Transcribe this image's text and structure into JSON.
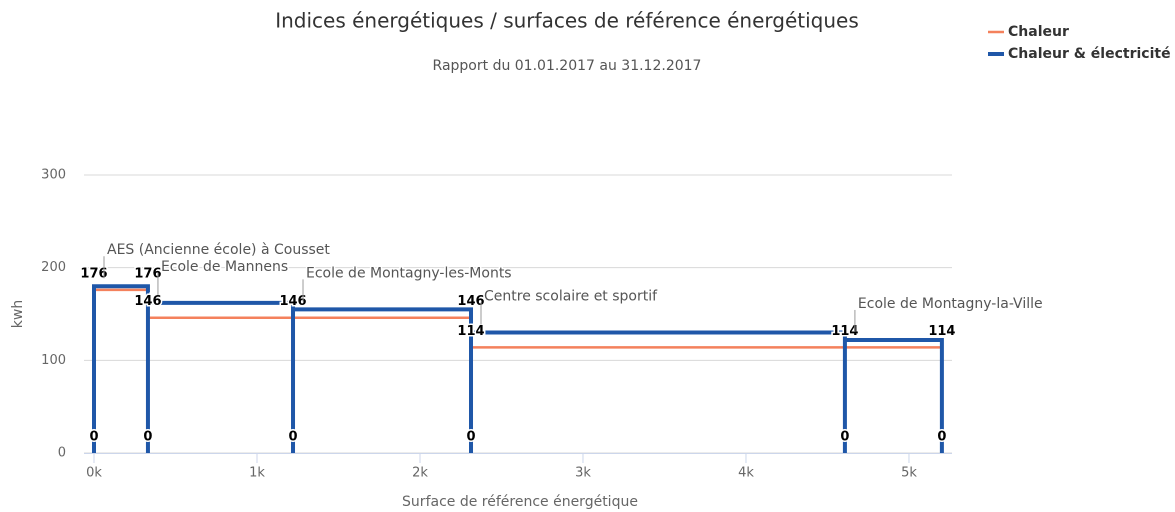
{
  "chart_data": {
    "type": "line",
    "title": "Indices énergétiques / surfaces de référence énergétiques",
    "subtitle": "Rapport du 01.01.2017 au 31.12.2017",
    "x_label": "Surface de référence énergétique",
    "y_label": "kwh",
    "x": [
      0,
      0,
      331,
      331,
      331,
      1221,
      1221,
      1221,
      2313,
      2313,
      2313,
      4607,
      4607,
      4607,
      5202,
      5202
    ],
    "series": [
      {
        "name": "Chaleur",
        "color": "#f4815c",
        "values": [
          0,
          176,
          176,
          0,
          146,
          146,
          0,
          146,
          146,
          0,
          114,
          114,
          0,
          114,
          114,
          0
        ],
        "data_labels": true
      },
      {
        "name": "Chaleur & électricité",
        "color": "#1f57a8",
        "values": [
          0,
          180,
          180,
          0,
          162,
          162,
          0,
          155,
          155,
          0,
          130,
          130,
          0,
          122,
          122,
          0
        ],
        "data_labels": false
      }
    ],
    "annotations": [
      {
        "text": "AES (Ancienne école) à Cousset",
        "x": 0,
        "y": 180
      },
      {
        "text": "Ecole de Mannens",
        "x": 331,
        "y": 162
      },
      {
        "text": "Ecole de Montagny-les-Monts",
        "x": 1221,
        "y": 155
      },
      {
        "text": "Centre scolaire et sportif",
        "x": 2313,
        "y": 130
      },
      {
        "text": "Ecole de Montagny-la-Ville",
        "x": 4607,
        "y": 122
      }
    ],
    "xlim": [
      0,
      5264
    ],
    "xticks": [
      {
        "value": 0,
        "label": "0k"
      },
      {
        "value": 1000,
        "label": "1k"
      },
      {
        "value": 2000,
        "label": "2k"
      },
      {
        "value": 3000,
        "label": "3k"
      },
      {
        "value": 4000,
        "label": "4k"
      },
      {
        "value": 5000,
        "label": "5k"
      }
    ],
    "ylim": [
      0,
      300
    ],
    "yticks": [
      0,
      100,
      200,
      300
    ],
    "grid": true,
    "legend": "top-right"
  }
}
